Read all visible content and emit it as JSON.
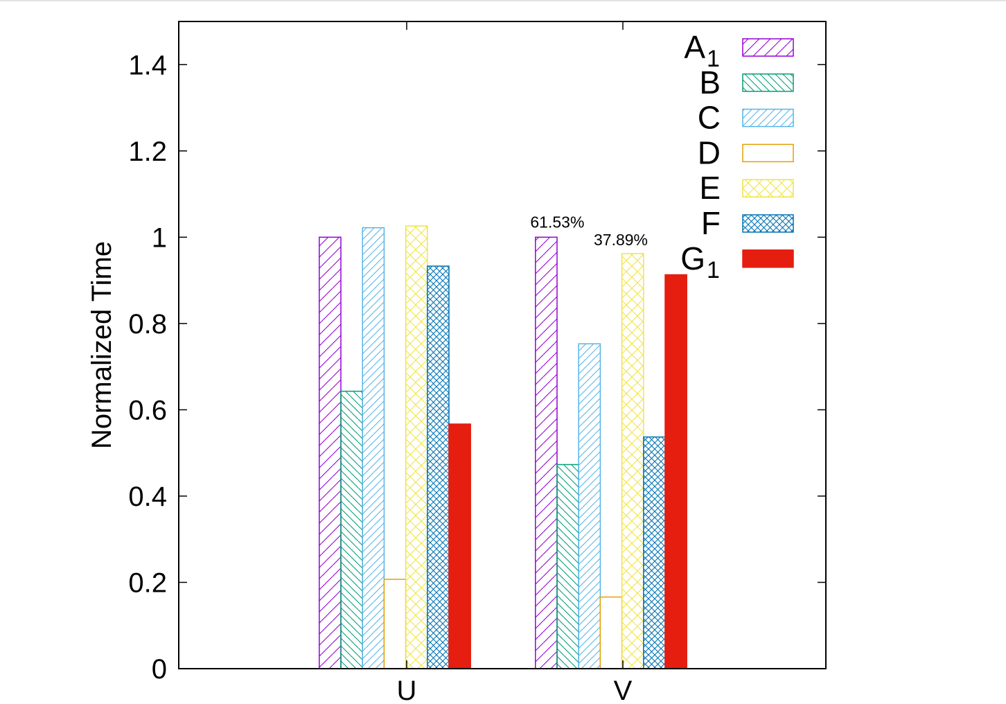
{
  "chart_data": {
    "type": "bar",
    "xlabel": "",
    "ylabel": "Normalized Time",
    "ylim": [
      0,
      1.5
    ],
    "yticks": [
      "0",
      "0.2",
      "0.4",
      "0.6",
      "0.8",
      "1",
      "1.2",
      "1.4"
    ],
    "ytick_values": [
      0,
      0.2,
      0.4,
      0.6,
      0.8,
      1.0,
      1.2,
      1.4
    ],
    "categories": [
      "U",
      "V"
    ],
    "legend_position": "top-right",
    "grid": false,
    "series": [
      {
        "name": "A",
        "subscript": "1",
        "values": [
          1.0,
          1.0
        ],
        "color": "#9400d3",
        "pattern": "diag-up"
      },
      {
        "name": "B",
        "subscript": "",
        "values": [
          0.643,
          0.473
        ],
        "color": "#009e73",
        "pattern": "diag-down"
      },
      {
        "name": "C",
        "subscript": "",
        "values": [
          1.022,
          0.753
        ],
        "color": "#56b4e9",
        "pattern": "diag-up-dense"
      },
      {
        "name": "D",
        "subscript": "",
        "values": [
          0.207,
          0.166
        ],
        "color": "#e69f00",
        "pattern": "none"
      },
      {
        "name": "E",
        "subscript": "",
        "values": [
          1.026,
          0.962
        ],
        "color": "#f0e442",
        "pattern": "cross"
      },
      {
        "name": "F",
        "subscript": "",
        "values": [
          0.933,
          0.537
        ],
        "color": "#0072b2",
        "pattern": "cross-dense"
      },
      {
        "name": "G",
        "subscript": "1",
        "values": [
          0.567,
          0.913
        ],
        "color": "#e51e10",
        "pattern": "solid"
      }
    ],
    "annotations": [
      {
        "text": "61.53%",
        "category": "V",
        "series": 0
      },
      {
        "text": "37.89%",
        "category": "V",
        "series": 3
      }
    ]
  }
}
